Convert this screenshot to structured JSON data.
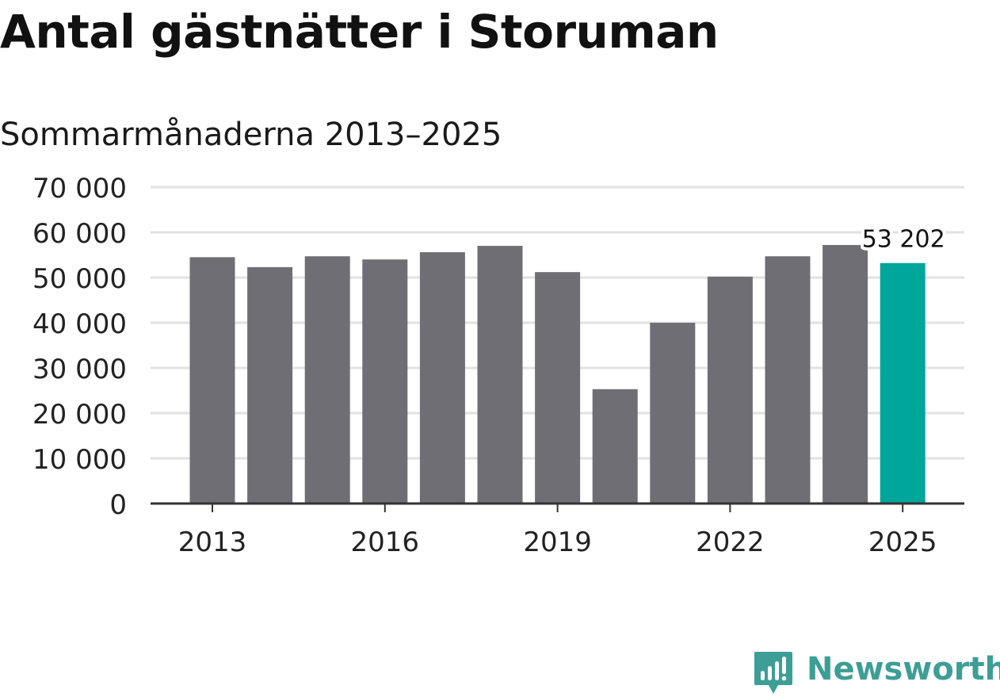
{
  "header": {
    "title": "Antal gästnätter i Storuman",
    "subtitle": "Sommarmånaderna 2013–2025"
  },
  "colors": {
    "bar": "#6f6e75",
    "highlight": "#00a69a",
    "brand": "#3d9e95",
    "grid": "#e2e2e2",
    "axis": "#333333",
    "text": "#222222"
  },
  "chart_data": {
    "type": "bar",
    "title": "Antal gästnätter i Storuman",
    "subtitle": "Sommarmånaderna 2013–2025",
    "xlabel": "",
    "ylabel": "",
    "categories": [
      2013,
      2014,
      2015,
      2016,
      2017,
      2018,
      2019,
      2020,
      2021,
      2022,
      2023,
      2024,
      2025
    ],
    "values": [
      54500,
      52300,
      54700,
      54000,
      55600,
      57000,
      51200,
      25300,
      40000,
      50200,
      54700,
      57200,
      53202
    ],
    "highlight_index": 12,
    "data_labels": [
      {
        "index": 12,
        "text": "53 202"
      }
    ],
    "ylim": [
      0,
      70000
    ],
    "yticks": [
      0,
      10000,
      20000,
      30000,
      40000,
      50000,
      60000,
      70000
    ],
    "ytick_labels": [
      "0",
      "10 000",
      "20 000",
      "30 000",
      "40 000",
      "50 000",
      "60 000",
      "70 000"
    ],
    "xticks": [
      2013,
      2016,
      2019,
      2022,
      2025
    ],
    "xtick_labels": [
      "2013",
      "2016",
      "2019",
      "2022",
      "2025"
    ],
    "grid": true,
    "legend": "none"
  },
  "branding": {
    "name": "Newsworthy",
    "icon": "bar-chart-speech-bubble-icon"
  }
}
